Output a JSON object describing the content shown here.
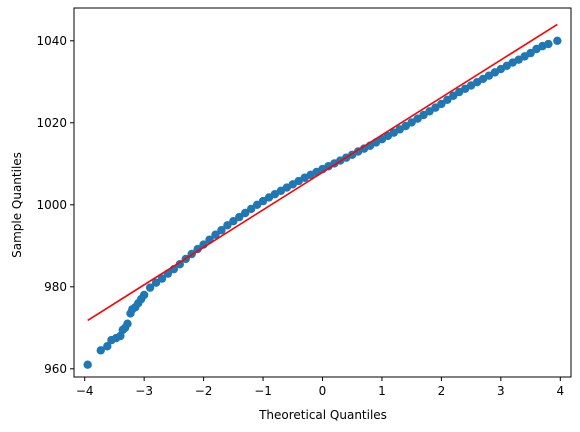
{
  "chart_data": {
    "type": "scatter",
    "title": "",
    "xlabel": "Theoretical Quantiles",
    "ylabel": "Sample Quantiles",
    "xlim": [
      -4.18,
      4.18
    ],
    "ylim": [
      958.0,
      1048.0
    ],
    "x_ticks": [
      -4,
      -3,
      -2,
      -1,
      0,
      1,
      2,
      3,
      4
    ],
    "y_ticks": [
      960,
      980,
      1000,
      1020,
      1040
    ],
    "grid": false,
    "legend": "none",
    "series": [
      {
        "kind": "points",
        "color": "#1f77b4",
        "x": [
          -3.95,
          -3.73,
          -3.62,
          -3.55,
          -3.47,
          -3.4,
          -3.36,
          -3.32,
          -3.28,
          -3.23,
          -3.2,
          -3.15,
          -3.1,
          -3.05,
          -3.0,
          -2.9,
          -2.8,
          -2.7,
          -2.6,
          -2.5,
          -2.4,
          -2.3,
          -2.2,
          -2.1,
          -2.0,
          -1.9,
          -1.8,
          -1.7,
          -1.6,
          -1.5,
          -1.4,
          -1.3,
          -1.2,
          -1.1,
          -1.0,
          -0.9,
          -0.8,
          -0.7,
          -0.6,
          -0.5,
          -0.4,
          -0.3,
          -0.2,
          -0.1,
          0.0,
          0.1,
          0.2,
          0.3,
          0.4,
          0.5,
          0.6,
          0.7,
          0.8,
          0.9,
          1.0,
          1.1,
          1.2,
          1.3,
          1.4,
          1.5,
          1.6,
          1.7,
          1.8,
          1.9,
          2.0,
          2.1,
          2.2,
          2.3,
          2.4,
          2.5,
          2.6,
          2.7,
          2.8,
          2.9,
          3.0,
          3.1,
          3.2,
          3.3,
          3.4,
          3.5,
          3.6,
          3.7,
          3.8,
          3.95
        ],
        "y": [
          961.0,
          964.5,
          965.5,
          967.0,
          967.5,
          968.0,
          969.5,
          970.0,
          971.0,
          973.5,
          974.5,
          975.0,
          976.0,
          977.0,
          978.0,
          979.8,
          981.0,
          982.0,
          983.2,
          984.3,
          985.5,
          986.8,
          988.0,
          989.2,
          990.3,
          991.5,
          992.7,
          993.8,
          995.0,
          996.0,
          997.0,
          998.0,
          999.0,
          1000.0,
          1000.9,
          1001.8,
          1002.6,
          1003.4,
          1004.2,
          1005.0,
          1005.8,
          1006.6,
          1007.3,
          1008.0,
          1008.7,
          1009.4,
          1010.1,
          1010.8,
          1011.5,
          1012.2,
          1013.0,
          1013.7,
          1014.4,
          1015.2,
          1016.0,
          1016.8,
          1017.6,
          1018.4,
          1019.2,
          1020.1,
          1021.0,
          1021.9,
          1022.8,
          1023.7,
          1024.6,
          1025.6,
          1026.6,
          1027.5,
          1028.3,
          1029.1,
          1029.9,
          1030.7,
          1031.5,
          1032.3,
          1033.1,
          1033.9,
          1034.7,
          1035.4,
          1036.2,
          1037.0,
          1038.0,
          1038.7,
          1039.2,
          1040.0
        ]
      },
      {
        "kind": "line",
        "color": "#ff0000",
        "x": [
          -3.95,
          3.95
        ],
        "y": [
          971.8,
          1044.0
        ]
      }
    ]
  }
}
